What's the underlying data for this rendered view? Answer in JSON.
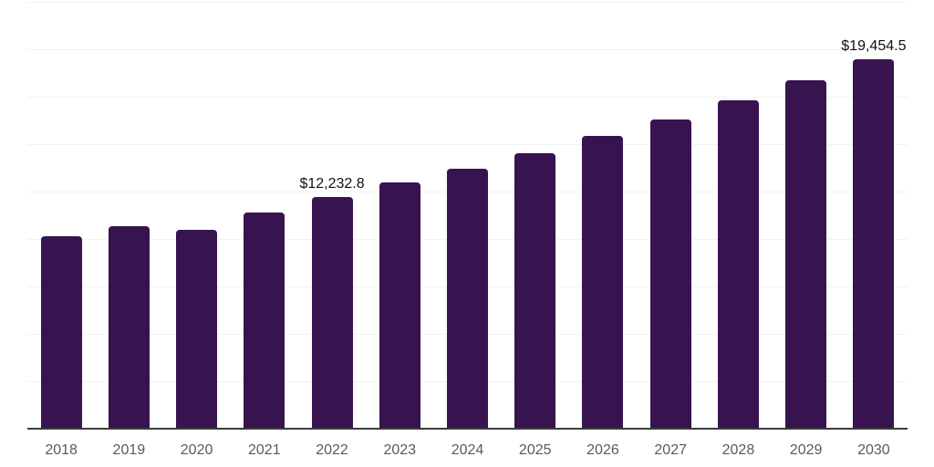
{
  "chart_data": {
    "type": "bar",
    "title": "",
    "xlabel": "",
    "ylabel": "",
    "categories": [
      "2018",
      "2019",
      "2020",
      "2021",
      "2022",
      "2023",
      "2024",
      "2025",
      "2026",
      "2027",
      "2028",
      "2029",
      "2030"
    ],
    "values": [
      10150,
      10650,
      10490,
      11400,
      12232.8,
      12960,
      13700,
      14520,
      15410,
      16320,
      17300,
      18380,
      19454.5
    ],
    "labeled_points": [
      {
        "category": "2022",
        "label": "$12,232.8"
      },
      {
        "category": "2030",
        "label": "$19,454.5"
      }
    ],
    "ylim": [
      0,
      22500
    ],
    "gridline_step": 2500,
    "grid": "horizontal-only",
    "legend": "none",
    "y_tick_labels": "none",
    "colors": {
      "bar": "#371450",
      "gridline": "#f2f2f4",
      "axis_line": "#3b3b3b",
      "tick_label": "#5a5a5a",
      "value_label": "#111111",
      "background": "#ffffff"
    }
  }
}
